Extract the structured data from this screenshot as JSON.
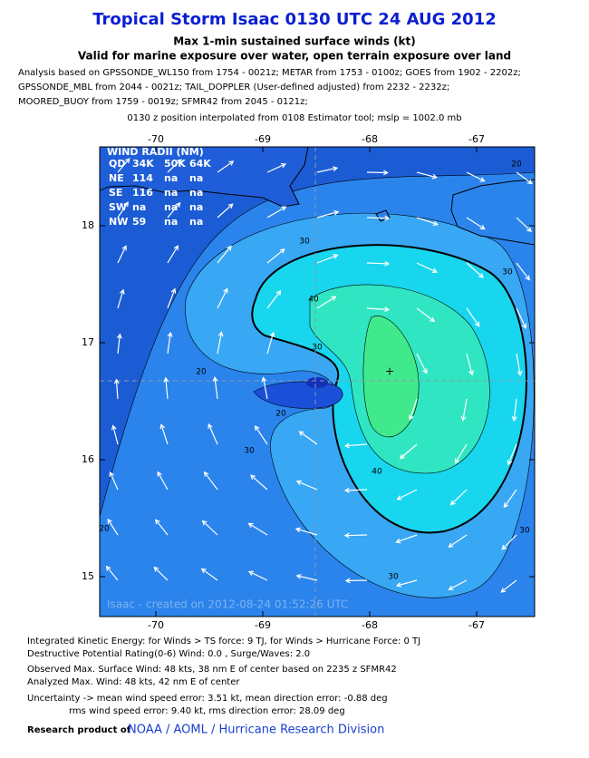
{
  "header": {
    "title": "Tropical Storm Isaac 0130 UTC 24 AUG 2012",
    "subtitle_1": "Max 1-min sustained surface winds (kt)",
    "subtitle_2": "Valid for marine exposure over water, open terrain exposure over land",
    "analysis_lines": [
      "Analysis based on GPSSONDE_WL150 from 1754 - 0021z; METAR from 1753 - 0100z; GOES from 1902 - 2202z;",
      "GPSSONDE_MBL from 2044 - 0021z; TAIL_DOPPLER (User-defined adjusted) from 2232 - 2232z;",
      "MOORED_BUOY from 1759 - 0019z; SFMR42 from 2045 - 0121z;"
    ],
    "position_note": "0130 z position interpolated from 0108 Estimator tool; mslp = 1002.0 mb"
  },
  "map": {
    "lon_ticks": [
      -70,
      -69,
      -68,
      -67
    ],
    "lat_ticks": [
      18,
      17,
      16,
      15
    ],
    "wind_radii": {
      "title": "WIND RADII (NM)",
      "header": [
        "QD",
        "34K",
        "50K",
        "64K"
      ],
      "rows": [
        [
          "NE",
          "114",
          "na",
          "na"
        ],
        [
          "SE",
          "116",
          "na",
          "na"
        ],
        [
          "SW",
          "na",
          "na",
          "na"
        ],
        [
          "NW",
          "59",
          "na",
          "na"
        ]
      ]
    },
    "contour_labels": [
      "20",
      "30",
      "30",
      "40",
      "30",
      "20",
      "20",
      "30",
      "40",
      "30",
      "20",
      "30"
    ],
    "credit": "Isaac - created on 2012-08-24 01:52:26 UTC"
  },
  "footer": {
    "lines": [
      "Integrated Kinetic Energy: for Winds > TS force: 9 TJ, for Winds > Hurricane Force: 0 TJ",
      "Destructive Potential Rating(0-6)   Wind: 0.0 , Surge/Waves: 2.0",
      "Observed Max. Surface Wind: 48 kts, 38 nm E of center based on 2235 z SFMR42",
      "Analyzed Max. Wind: 48 kts, 42 nm  E of center",
      "Uncertainty -> mean wind speed error: 3.51 kt, mean direction error:  -0.88 deg",
      "rms wind speed error: 9.40 kt, rms direction error: 28.09 deg"
    ],
    "research_label": "Research product of",
    "org": "NOAA / AOML / Hurricane Research Division"
  }
}
